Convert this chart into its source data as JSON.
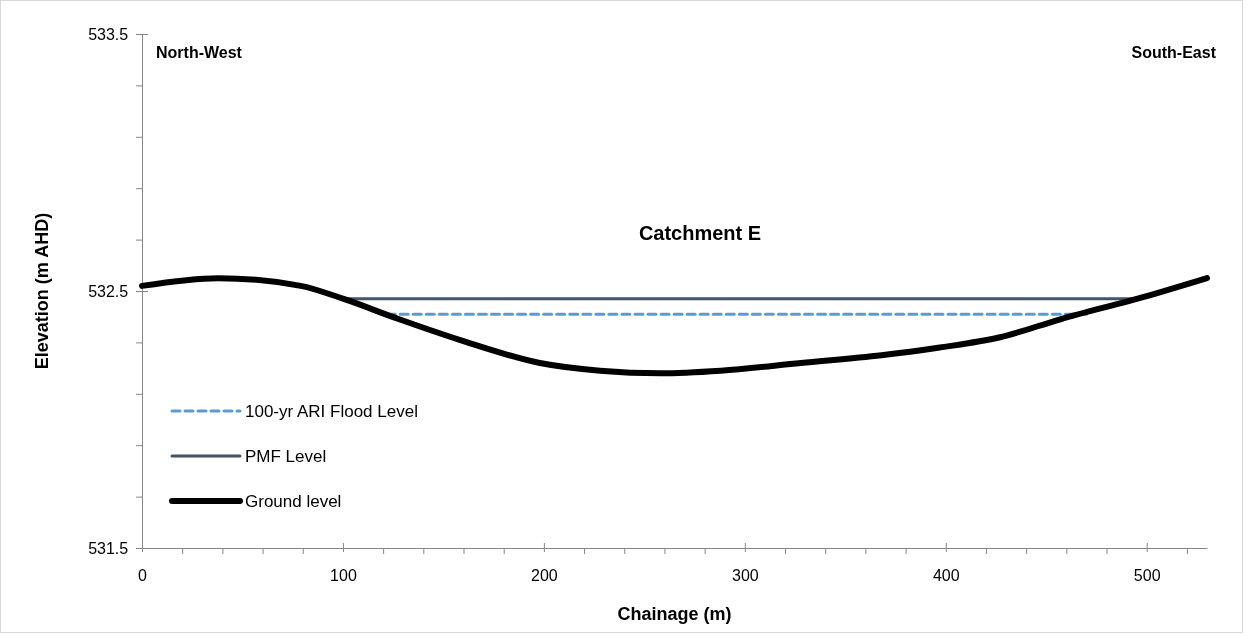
{
  "chart_data": {
    "type": "line",
    "title": "Catchment E",
    "xlabel": "Chainage (m)",
    "ylabel": "Elevation (m AHD)",
    "annotations": [
      "North-West",
      "South-East"
    ],
    "xlim": [
      0,
      530
    ],
    "xticks": [
      0,
      {
        "value": 20,
        "label": null
      },
      {
        "value": 40,
        "label": null
      },
      {
        "value": 60,
        "label": null
      },
      {
        "value": 80,
        "label": null
      },
      100,
      {
        "value": 120,
        "label": null
      },
      {
        "value": 140,
        "label": null
      },
      {
        "value": 160,
        "label": null
      },
      {
        "value": 180,
        "label": null
      },
      200,
      {
        "value": 220,
        "label": null
      },
      {
        "value": 240,
        "label": null
      },
      {
        "value": 260,
        "label": null
      },
      {
        "value": 280,
        "label": null
      },
      300,
      {
        "value": 320,
        "label": null
      },
      {
        "value": 340,
        "label": null
      },
      {
        "value": 360,
        "label": null
      },
      {
        "value": 380,
        "label": null
      },
      400,
      {
        "value": 420,
        "label": null
      },
      {
        "value": 440,
        "label": null
      },
      {
        "value": 460,
        "label": null
      },
      {
        "value": 480,
        "label": null
      },
      500,
      {
        "value": 520,
        "label": null
      }
    ],
    "ylim": [
      531.5,
      533.5
    ],
    "yticks": [
      531.5,
      {
        "value": 531.7,
        "label": null
      },
      {
        "value": 531.9,
        "label": null
      },
      {
        "value": 532.1,
        "label": null
      },
      {
        "value": 532.3,
        "label": null
      },
      532.5,
      {
        "value": 532.7,
        "label": null
      },
      {
        "value": 532.9,
        "label": null
      },
      {
        "value": 533.1,
        "label": null
      },
      {
        "value": 533.3,
        "label": null
      },
      533.5
    ],
    "grid": false,
    "legend": "bottom left",
    "marker": "none",
    "series": [
      {
        "name": "100-yr ARI Flood Level",
        "color": "#5b9bd5",
        "line_style": "dashed",
        "x": [
          122,
          470
        ],
        "values": [
          532.41,
          532.41
        ]
      },
      {
        "name": "PMF Level",
        "color": "#44546a",
        "line_style": "solid",
        "x": [
          100,
          497
        ],
        "values": [
          532.47,
          532.47
        ]
      },
      {
        "name": "Ground level",
        "color": "#000000",
        "line_style": "solid",
        "x": [
          0,
          38,
          79,
          100,
          128,
          158,
          198,
          228,
          258,
          288,
          328,
          368,
          397,
          427,
          457,
          500,
          530
        ],
        "values": [
          532.52,
          532.55,
          532.52,
          532.47,
          532.39,
          532.31,
          532.22,
          532.19,
          532.18,
          532.19,
          532.22,
          532.25,
          532.28,
          532.32,
          532.39,
          532.48,
          532.55
        ]
      }
    ]
  }
}
